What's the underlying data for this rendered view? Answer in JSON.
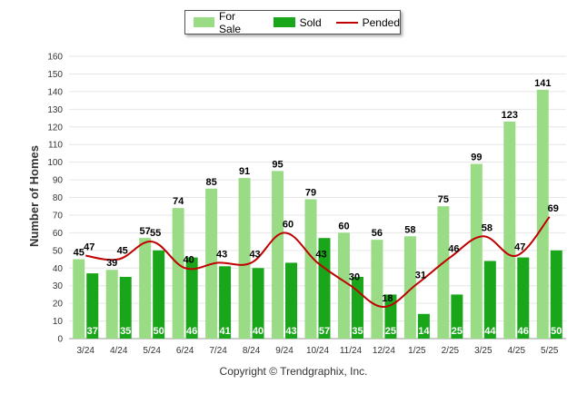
{
  "chart_data": {
    "type": "bar",
    "categories": [
      "3/24",
      "4/24",
      "5/24",
      "6/24",
      "7/24",
      "8/24",
      "9/24",
      "10/24",
      "11/24",
      "12/24",
      "1/25",
      "2/25",
      "3/25",
      "4/25",
      "5/25"
    ],
    "series": [
      {
        "name": "For Sale",
        "type": "bar",
        "color": "#9ADB86",
        "values": [
          45,
          39,
          57,
          74,
          85,
          91,
          95,
          79,
          60,
          56,
          58,
          75,
          99,
          123,
          141
        ]
      },
      {
        "name": "Sold",
        "type": "bar",
        "color": "#1AA61A",
        "values": [
          37,
          35,
          50,
          46,
          41,
          40,
          43,
          57,
          35,
          25,
          14,
          25,
          44,
          46,
          50
        ]
      },
      {
        "name": "Pended",
        "type": "line",
        "color": "#C00000",
        "values": [
          47,
          45,
          55,
          40,
          43,
          43,
          60,
          43,
          30,
          18,
          31,
          46,
          58,
          47,
          69
        ]
      }
    ],
    "ylabel": "Number of Homes",
    "xlabel": "",
    "ylim": [
      0,
      160
    ],
    "yticks": [
      0,
      10,
      20,
      30,
      40,
      50,
      60,
      70,
      80,
      90,
      100,
      110,
      120,
      130,
      140,
      150,
      160
    ],
    "grid": true,
    "legend": "top-center"
  },
  "footer": {
    "copyright": "Copyright © Trendgraphix, Inc."
  }
}
